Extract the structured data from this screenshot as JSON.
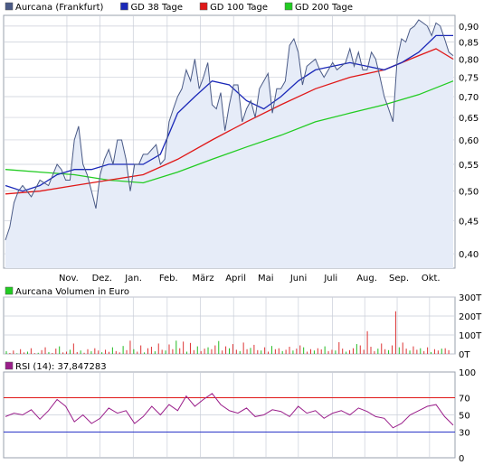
{
  "chart_data": [
    {
      "type": "line",
      "legend": [
        {
          "name": "Aurcana (Frankfurt)",
          "color": "#4a5a86"
        },
        {
          "name": "GD 38 Tage",
          "color": "#1a28b8"
        },
        {
          "name": "GD 100 Tage",
          "color": "#e01818"
        },
        {
          "name": "GD 200 Tage",
          "color": "#22cc22"
        }
      ],
      "legend_placement": "top",
      "x_ticks": [
        "Nov.",
        "Dez.",
        "Jan.",
        "Feb.",
        "März",
        "April",
        "Mai",
        "Juni",
        "Juli",
        "Aug.",
        "Sep.",
        "Okt."
      ],
      "y_ticks": [
        "0,90",
        "0,85",
        "0,80",
        "0,75",
        "0,70",
        "0,65",
        "0,60",
        "0,55",
        "0,50",
        "0,45",
        "0,40"
      ],
      "ylim": [
        0.38,
        0.935
      ],
      "scale": "log",
      "grid": true,
      "area_fill": "#e6ecf8",
      "series": [
        {
          "name": "Aurcana (Frankfurt)",
          "color": "#4a5a86",
          "x": [
            0,
            0.5,
            1,
            1.5,
            2,
            3,
            4,
            5,
            6,
            6.5,
            7,
            7.5,
            8,
            8.5,
            9,
            9.5,
            10,
            10.5,
            11,
            11.5,
            12,
            12.5,
            13,
            13.5,
            14,
            14.5,
            15,
            15.5,
            16,
            16.5,
            17,
            17.5,
            18,
            18.5,
            19,
            19.5,
            20,
            20.5,
            21,
            21.5,
            22,
            22.5,
            23,
            23.5,
            24,
            24.5,
            25,
            25.5,
            26,
            26.5,
            27,
            27.5,
            28,
            28.5,
            29,
            29.5,
            30,
            30.5,
            31,
            31.5,
            32,
            32.5,
            33,
            33.5,
            34,
            34.5,
            35,
            35.5,
            36,
            36.5,
            37,
            37.5,
            38,
            38.5,
            39,
            39.5,
            40,
            40.5,
            41,
            41.5,
            42,
            42.5,
            43,
            43.5,
            44,
            44.5,
            45,
            45.5,
            46,
            46.5,
            47,
            47.5,
            48,
            48.5,
            49,
            49.5,
            50,
            50.5,
            51,
            51.5,
            52
          ],
          "y": [
            0.42,
            0.44,
            0.48,
            0.5,
            0.51,
            0.49,
            0.52,
            0.51,
            0.55,
            0.54,
            0.52,
            0.52,
            0.6,
            0.63,
            0.55,
            0.53,
            0.5,
            0.47,
            0.53,
            0.56,
            0.58,
            0.55,
            0.6,
            0.6,
            0.56,
            0.5,
            0.55,
            0.55,
            0.57,
            0.57,
            0.58,
            0.59,
            0.55,
            0.56,
            0.64,
            0.67,
            0.7,
            0.72,
            0.77,
            0.74,
            0.8,
            0.72,
            0.75,
            0.79,
            0.68,
            0.67,
            0.71,
            0.62,
            0.68,
            0.73,
            0.73,
            0.64,
            0.67,
            0.69,
            0.65,
            0.72,
            0.74,
            0.76,
            0.66,
            0.72,
            0.72,
            0.74,
            0.84,
            0.86,
            0.82,
            0.73,
            0.78,
            0.79,
            0.8,
            0.77,
            0.75,
            0.77,
            0.79,
            0.77,
            0.78,
            0.79,
            0.83,
            0.78,
            0.82,
            0.77,
            0.77,
            0.82,
            0.8,
            0.75,
            0.7,
            0.67,
            0.64,
            0.8,
            0.86,
            0.85,
            0.89,
            0.9,
            0.92,
            0.91,
            0.9,
            0.87,
            0.91,
            0.9,
            0.86,
            0.82,
            0.81
          ]
        },
        {
          "name": "GD 38 Tage",
          "color": "#1a28b8",
          "x": [
            0,
            2,
            4,
            6,
            8,
            10,
            12,
            14,
            16,
            18,
            20,
            22,
            24,
            26,
            28,
            30,
            32,
            34,
            36,
            38,
            40,
            42,
            44,
            46,
            48,
            50,
            52
          ],
          "y": [
            0.51,
            0.5,
            0.51,
            0.53,
            0.54,
            0.54,
            0.55,
            0.55,
            0.55,
            0.57,
            0.66,
            0.7,
            0.74,
            0.73,
            0.69,
            0.67,
            0.7,
            0.74,
            0.77,
            0.78,
            0.79,
            0.78,
            0.77,
            0.79,
            0.82,
            0.87,
            0.87
          ]
        },
        {
          "name": "GD 100 Tage",
          "color": "#e01818",
          "x": [
            0,
            4,
            8,
            12,
            16,
            20,
            24,
            28,
            32,
            36,
            40,
            44,
            48,
            50,
            52
          ],
          "y": [
            0.495,
            0.5,
            0.51,
            0.52,
            0.53,
            0.56,
            0.6,
            0.64,
            0.68,
            0.72,
            0.75,
            0.77,
            0.81,
            0.83,
            0.8
          ]
        },
        {
          "name": "GD 200 Tage",
          "color": "#22cc22",
          "x": [
            0,
            4,
            8,
            12,
            16,
            20,
            24,
            28,
            32,
            36,
            40,
            44,
            48,
            52
          ],
          "y": [
            0.54,
            0.535,
            0.53,
            0.52,
            0.515,
            0.535,
            0.56,
            0.585,
            0.61,
            0.64,
            0.66,
            0.68,
            0.705,
            0.74
          ]
        }
      ]
    },
    {
      "type": "bar",
      "legend": [
        {
          "name": "Aurcana Volumen in Euro",
          "color": "#22cc22"
        }
      ],
      "y_ticks": [
        "300T",
        "200T",
        "100T",
        "0T"
      ],
      "ylim": [
        0,
        300000
      ],
      "values_k": [
        15,
        5,
        18,
        3,
        25,
        8,
        12,
        30,
        4,
        6,
        20,
        35,
        10,
        5,
        28,
        40,
        8,
        12,
        22,
        55,
        10,
        18,
        6,
        25,
        14,
        30,
        18,
        9,
        22,
        11,
        35,
        15,
        8,
        42,
        20,
        70,
        25,
        12,
        45,
        8,
        30,
        38,
        14,
        55,
        22,
        18,
        50,
        25,
        70,
        30,
        65,
        12,
        58,
        20,
        40,
        15,
        28,
        35,
        25,
        45,
        68,
        18,
        40,
        30,
        52,
        22,
        15,
        60,
        25,
        32,
        48,
        20,
        18,
        35,
        12,
        42,
        25,
        30,
        15,
        22,
        38,
        18,
        28,
        45,
        35,
        12,
        25,
        18,
        30,
        24,
        40,
        15,
        22,
        18,
        62,
        28,
        12,
        20,
        30,
        52,
        45,
        22,
        120,
        38,
        15,
        28,
        55,
        25,
        20,
        45,
        225,
        35,
        60,
        28,
        18,
        40,
        22,
        30,
        15,
        35,
        10,
        25,
        18,
        28,
        30,
        20
      ]
    },
    {
      "type": "line",
      "legend": [
        {
          "name": "RSI (14): 37,847283",
          "color": "#9a1e8a"
        }
      ],
      "y_ticks": [
        "100",
        "70",
        "50",
        "30",
        "0"
      ],
      "ylim": [
        0,
        100
      ],
      "reference_lines": [
        {
          "value": 70,
          "color": "#e01818"
        },
        {
          "value": 30,
          "color": "#2a36c8"
        }
      ],
      "series": [
        {
          "name": "RSI (14)",
          "color": "#9a1e8a",
          "x": [
            0,
            1,
            2,
            3,
            4,
            5,
            6,
            7,
            8,
            9,
            10,
            11,
            12,
            13,
            14,
            15,
            16,
            17,
            18,
            19,
            20,
            21,
            22,
            23,
            24,
            25,
            26,
            27,
            28,
            29,
            30,
            31,
            32,
            33,
            34,
            35,
            36,
            37,
            38,
            39,
            40,
            41,
            42,
            43,
            44,
            45,
            46,
            47,
            48,
            49,
            50,
            51,
            52
          ],
          "y": [
            48,
            52,
            50,
            56,
            45,
            55,
            68,
            60,
            42,
            50,
            40,
            46,
            58,
            52,
            55,
            40,
            48,
            60,
            50,
            62,
            55,
            72,
            60,
            68,
            75,
            62,
            55,
            52,
            58,
            48,
            50,
            56,
            54,
            48,
            60,
            52,
            55,
            46,
            52,
            55,
            50,
            58,
            54,
            48,
            46,
            35,
            40,
            50,
            55,
            60,
            62,
            48,
            38
          ]
        }
      ]
    }
  ]
}
